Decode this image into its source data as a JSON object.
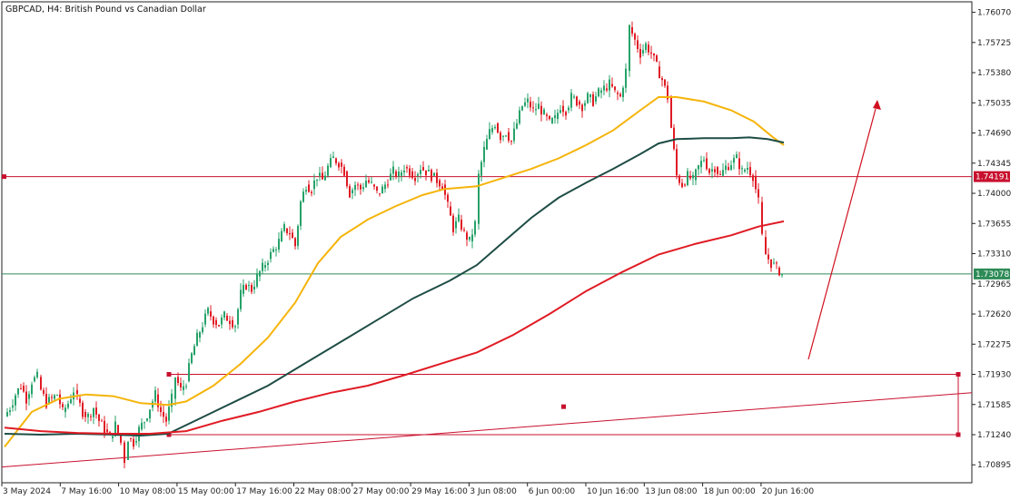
{
  "header": {
    "title": "GBPCAD, H4:  British Pound vs Canadian Dollar"
  },
  "colors": {
    "bull": "#26a269",
    "bear": "#e01b24",
    "ma_fast": "#f5b40a",
    "ma_mid": "#1e4d45",
    "ma_slow": "#e01b24",
    "resistance": "#c8102e",
    "current": "#2e8b57",
    "zone": "#c8102e",
    "arrow": "#d01020"
  },
  "chart_data": {
    "type": "candlestick",
    "symbol": "GBPCAD",
    "timeframe": "H4",
    "ylim": [
      1.7069,
      1.7619
    ],
    "y_ticks": [
      "1.76070",
      "1.75725",
      "1.75380",
      "1.75035",
      "1.74690",
      "1.74345",
      "1.74000",
      "1.73655",
      "1.73310",
      "1.72965",
      "1.72620",
      "1.72275",
      "1.71930",
      "1.71585",
      "1.71240",
      "1.70895"
    ],
    "x_ticks": [
      "3 May 2024",
      "7 May 16:00",
      "10 May 08:00",
      "15 May 00:00",
      "17 May 16:00",
      "22 May 08:00",
      "27 May 00:00",
      "29 May 16:00",
      "3 Jun 08:00",
      "6 Jun 00:00",
      "10 Jun 16:00",
      "13 Jun 08:00",
      "18 Jun 00:00",
      "20 Jun 16:00"
    ],
    "series": [
      {
        "name": "close",
        "points": [
          [
            0,
            1.7145
          ],
          [
            6,
            1.7155
          ],
          [
            12,
            1.717
          ],
          [
            18,
            1.718
          ],
          [
            24,
            1.7165
          ],
          [
            30,
            1.7185
          ],
          [
            36,
            1.719
          ],
          [
            40,
            1.7175
          ],
          [
            46,
            1.716
          ],
          [
            52,
            1.7165
          ],
          [
            58,
            1.717
          ],
          [
            64,
            1.715
          ],
          [
            70,
            1.716
          ],
          [
            76,
            1.7175
          ],
          [
            80,
            1.7165
          ],
          [
            86,
            1.715
          ],
          [
            92,
            1.7145
          ],
          [
            98,
            1.7155
          ],
          [
            104,
            1.714
          ],
          [
            110,
            1.713
          ],
          [
            116,
            1.712
          ],
          [
            122,
            1.7135
          ],
          [
            128,
            1.7115
          ],
          [
            132,
            1.7095
          ],
          [
            136,
            1.712
          ],
          [
            142,
            1.7115
          ],
          [
            148,
            1.713
          ],
          [
            154,
            1.714
          ],
          [
            160,
            1.7155
          ],
          [
            166,
            1.717
          ],
          [
            172,
            1.715
          ],
          [
            178,
            1.714
          ],
          [
            184,
            1.7165
          ],
          [
            188,
            1.719
          ],
          [
            194,
            1.7175
          ],
          [
            200,
            1.7185
          ],
          [
            206,
            1.7215
          ],
          [
            212,
            1.7235
          ],
          [
            218,
            1.725
          ],
          [
            224,
            1.7265
          ],
          [
            230,
            1.7255
          ],
          [
            236,
            1.725
          ],
          [
            242,
            1.726
          ],
          [
            248,
            1.7255
          ],
          [
            254,
            1.725
          ],
          [
            260,
            1.7285
          ],
          [
            266,
            1.7295
          ],
          [
            272,
            1.729
          ],
          [
            278,
            1.7305
          ],
          [
            284,
            1.7315
          ],
          [
            290,
            1.7325
          ],
          [
            296,
            1.7335
          ],
          [
            302,
            1.7345
          ],
          [
            308,
            1.736
          ],
          [
            314,
            1.7355
          ],
          [
            320,
            1.734
          ],
          [
            326,
            1.739
          ],
          [
            332,
            1.741
          ],
          [
            338,
            1.7405
          ],
          [
            344,
            1.742
          ],
          [
            350,
            1.7415
          ],
          [
            356,
            1.743
          ],
          [
            362,
            1.744
          ],
          [
            368,
            1.7435
          ],
          [
            374,
            1.7425
          ],
          [
            380,
            1.74
          ],
          [
            386,
            1.741
          ],
          [
            392,
            1.7405
          ],
          [
            398,
            1.7415
          ],
          [
            404,
            1.741
          ],
          [
            410,
            1.74
          ],
          [
            416,
            1.7405
          ],
          [
            422,
            1.7415
          ],
          [
            428,
            1.7425
          ],
          [
            434,
            1.742
          ],
          [
            440,
            1.743
          ],
          [
            446,
            1.7425
          ],
          [
            452,
            1.742
          ],
          [
            458,
            1.743
          ],
          [
            464,
            1.7425
          ],
          [
            470,
            1.742
          ],
          [
            476,
            1.7415
          ],
          [
            482,
            1.741
          ],
          [
            488,
            1.7385
          ],
          [
            494,
            1.736
          ],
          [
            500,
            1.737
          ],
          [
            506,
            1.7355
          ],
          [
            512,
            1.7345
          ],
          [
            518,
            1.7365
          ],
          [
            522,
            1.742
          ],
          [
            528,
            1.745
          ],
          [
            534,
            1.747
          ],
          [
            540,
            1.748
          ],
          [
            546,
            1.7465
          ],
          [
            552,
            1.747
          ],
          [
            558,
            1.746
          ],
          [
            564,
            1.748
          ],
          [
            570,
            1.75
          ],
          [
            576,
            1.7505
          ],
          [
            582,
            1.7495
          ],
          [
            588,
            1.75
          ],
          [
            594,
            1.749
          ],
          [
            600,
            1.748
          ],
          [
            606,
            1.7485
          ],
          [
            612,
            1.75
          ],
          [
            618,
            1.7495
          ],
          [
            624,
            1.751
          ],
          [
            630,
            1.7505
          ],
          [
            636,
            1.75
          ],
          [
            642,
            1.751
          ],
          [
            648,
            1.7505
          ],
          [
            654,
            1.7515
          ],
          [
            660,
            1.752
          ],
          [
            666,
            1.7525
          ],
          [
            672,
            1.7515
          ],
          [
            678,
            1.751
          ],
          [
            684,
            1.754
          ],
          [
            688,
            1.759
          ],
          [
            694,
            1.7575
          ],
          [
            700,
            1.756
          ],
          [
            706,
            1.757
          ],
          [
            712,
            1.756
          ],
          [
            718,
            1.7545
          ],
          [
            724,
            1.753
          ],
          [
            730,
            1.751
          ],
          [
            734,
            1.7475
          ],
          [
            740,
            1.742
          ],
          [
            746,
            1.741
          ],
          [
            752,
            1.742
          ],
          [
            758,
            1.7415
          ],
          [
            764,
            1.743
          ],
          [
            770,
            1.744
          ],
          [
            776,
            1.7425
          ],
          [
            782,
            1.743
          ],
          [
            788,
            1.742
          ],
          [
            794,
            1.743
          ],
          [
            800,
            1.7435
          ],
          [
            806,
            1.744
          ],
          [
            812,
            1.7425
          ],
          [
            818,
            1.743
          ],
          [
            824,
            1.742
          ],
          [
            830,
            1.739
          ],
          [
            834,
            1.735
          ],
          [
            838,
            1.733
          ],
          [
            844,
            1.732
          ],
          [
            850,
            1.7315
          ],
          [
            856,
            1.7308
          ]
        ]
      },
      {
        "name": "ma_fast",
        "points": [
          [
            0,
            1.711
          ],
          [
            30,
            1.715
          ],
          [
            60,
            1.7165
          ],
          [
            90,
            1.717
          ],
          [
            120,
            1.7168
          ],
          [
            150,
            1.716
          ],
          [
            180,
            1.7158
          ],
          [
            200,
            1.7162
          ],
          [
            230,
            1.718
          ],
          [
            260,
            1.7205
          ],
          [
            290,
            1.7235
          ],
          [
            320,
            1.7275
          ],
          [
            345,
            1.732
          ],
          [
            370,
            1.735
          ],
          [
            400,
            1.737
          ],
          [
            430,
            1.7385
          ],
          [
            460,
            1.7398
          ],
          [
            485,
            1.7405
          ],
          [
            520,
            1.7408
          ],
          [
            550,
            1.7418
          ],
          [
            580,
            1.7428
          ],
          [
            610,
            1.744
          ],
          [
            640,
            1.7455
          ],
          [
            670,
            1.7472
          ],
          [
            700,
            1.7495
          ],
          [
            720,
            1.751
          ],
          [
            740,
            1.751
          ],
          [
            770,
            1.7505
          ],
          [
            800,
            1.7495
          ],
          [
            825,
            1.7482
          ],
          [
            845,
            1.7465
          ],
          [
            858,
            1.7455
          ]
        ]
      },
      {
        "name": "ma_mid",
        "points": [
          [
            0,
            1.7125
          ],
          [
            40,
            1.7124
          ],
          [
            80,
            1.7125
          ],
          [
            120,
            1.7124
          ],
          [
            150,
            1.7123
          ],
          [
            180,
            1.7125
          ],
          [
            210,
            1.714
          ],
          [
            250,
            1.716
          ],
          [
            290,
            1.718
          ],
          [
            330,
            1.7205
          ],
          [
            370,
            1.723
          ],
          [
            410,
            1.7255
          ],
          [
            450,
            1.728
          ],
          [
            490,
            1.73
          ],
          [
            520,
            1.7318
          ],
          [
            550,
            1.7345
          ],
          [
            580,
            1.7372
          ],
          [
            610,
            1.7395
          ],
          [
            640,
            1.7412
          ],
          [
            670,
            1.7428
          ],
          [
            700,
            1.7445
          ],
          [
            720,
            1.7457
          ],
          [
            740,
            1.7462
          ],
          [
            770,
            1.7463
          ],
          [
            800,
            1.7463
          ],
          [
            820,
            1.7464
          ],
          [
            840,
            1.7462
          ],
          [
            858,
            1.7458
          ]
        ]
      },
      {
        "name": "ma_slow",
        "points": [
          [
            0,
            1.7132
          ],
          [
            40,
            1.7128
          ],
          [
            80,
            1.7126
          ],
          [
            120,
            1.7125
          ],
          [
            160,
            1.7125
          ],
          [
            200,
            1.7128
          ],
          [
            240,
            1.714
          ],
          [
            280,
            1.715
          ],
          [
            320,
            1.7162
          ],
          [
            360,
            1.7172
          ],
          [
            400,
            1.718
          ],
          [
            440,
            1.7192
          ],
          [
            480,
            1.7205
          ],
          [
            520,
            1.7218
          ],
          [
            560,
            1.7238
          ],
          [
            600,
            1.7262
          ],
          [
            640,
            1.7288
          ],
          [
            680,
            1.731
          ],
          [
            720,
            1.733
          ],
          [
            760,
            1.7342
          ],
          [
            800,
            1.7352
          ],
          [
            830,
            1.7362
          ],
          [
            858,
            1.7368
          ]
        ]
      }
    ],
    "price_tags": [
      {
        "label": "1.74191",
        "value": 1.74191
      },
      {
        "label": "1.73078",
        "value": 1.73078
      }
    ],
    "grid": false,
    "legend": "none"
  }
}
